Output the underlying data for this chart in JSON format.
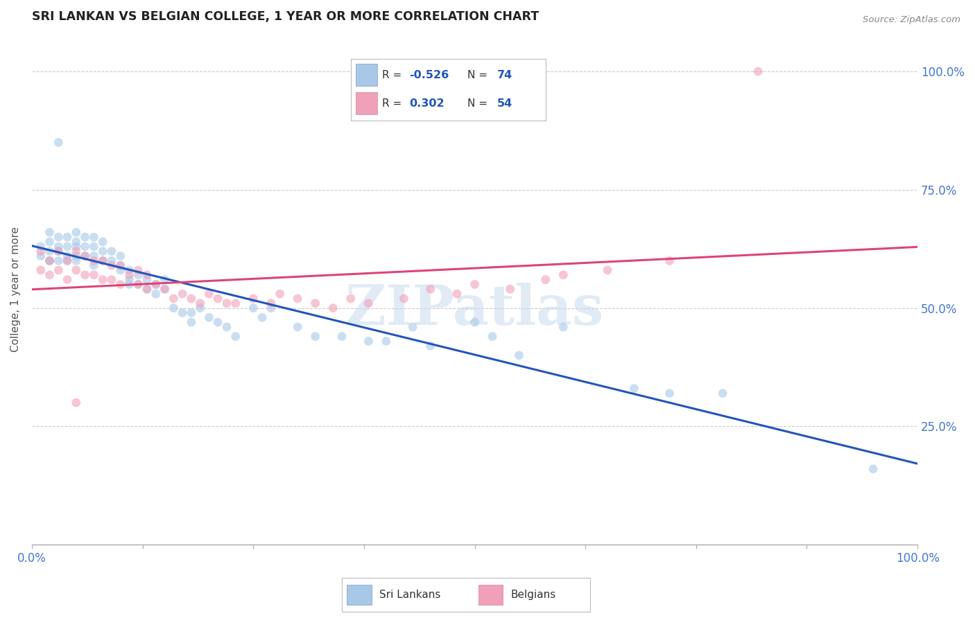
{
  "title": "SRI LANKAN VS BELGIAN COLLEGE, 1 YEAR OR MORE CORRELATION CHART",
  "source": "Source: ZipAtlas.com",
  "ylabel": "College, 1 year or more",
  "xlim": [
    0,
    1
  ],
  "ylim": [
    0,
    1.08
  ],
  "ytick_positions": [
    0.25,
    0.5,
    0.75,
    1.0
  ],
  "ytick_labels": [
    "25.0%",
    "50.0%",
    "75.0%",
    "100.0%"
  ],
  "xtick_positions": [
    0.0,
    0.125,
    0.25,
    0.375,
    0.5,
    0.625,
    0.75,
    0.875,
    1.0
  ],
  "xtick_label_positions": [
    0.0,
    1.0
  ],
  "xtick_label_texts": [
    "0.0%",
    "100.0%"
  ],
  "sri_lanka_color": "#a8c8e8",
  "belgian_color": "#f0a0b8",
  "sri_lanka_line_color": "#2255bb",
  "belgian_line_color": "#dd4477",
  "right_ytick_color": "#4477cc",
  "background_color": "#ffffff",
  "grid_color": "#cccccc",
  "marker_size": 85,
  "marker_alpha": 0.6,
  "watermark": "ZIPatlas",
  "sri_lanka_R": -0.526,
  "sri_lanka_N": 74,
  "belgian_R": 0.302,
  "belgian_N": 54,
  "sl_x": [
    0.01,
    0.01,
    0.02,
    0.02,
    0.02,
    0.02,
    0.02,
    0.03,
    0.03,
    0.03,
    0.03,
    0.03,
    0.04,
    0.04,
    0.04,
    0.04,
    0.05,
    0.05,
    0.05,
    0.05,
    0.05,
    0.06,
    0.06,
    0.06,
    0.07,
    0.07,
    0.07,
    0.07,
    0.08,
    0.08,
    0.08,
    0.09,
    0.09,
    0.1,
    0.1,
    0.1,
    0.11,
    0.11,
    0.11,
    0.12,
    0.12,
    0.13,
    0.13,
    0.14,
    0.14,
    0.15,
    0.15,
    0.16,
    0.17,
    0.18,
    0.18,
    0.19,
    0.2,
    0.21,
    0.22,
    0.23,
    0.25,
    0.26,
    0.27,
    0.3,
    0.32,
    0.35,
    0.38,
    0.4,
    0.43,
    0.45,
    0.5,
    0.52,
    0.55,
    0.6,
    0.68,
    0.72,
    0.78,
    0.95
  ],
  "sl_y": [
    0.63,
    0.61,
    0.66,
    0.64,
    0.62,
    0.6,
    0.6,
    0.65,
    0.63,
    0.62,
    0.6,
    0.85,
    0.65,
    0.63,
    0.61,
    0.6,
    0.66,
    0.64,
    0.63,
    0.61,
    0.6,
    0.65,
    0.63,
    0.61,
    0.65,
    0.63,
    0.61,
    0.59,
    0.64,
    0.62,
    0.6,
    0.62,
    0.6,
    0.61,
    0.59,
    0.58,
    0.58,
    0.56,
    0.55,
    0.57,
    0.55,
    0.56,
    0.54,
    0.55,
    0.53,
    0.56,
    0.54,
    0.5,
    0.49,
    0.49,
    0.47,
    0.5,
    0.48,
    0.47,
    0.46,
    0.44,
    0.5,
    0.48,
    0.5,
    0.46,
    0.44,
    0.44,
    0.43,
    0.43,
    0.46,
    0.42,
    0.47,
    0.44,
    0.4,
    0.46,
    0.33,
    0.32,
    0.32,
    0.16
  ],
  "be_x": [
    0.01,
    0.01,
    0.02,
    0.02,
    0.03,
    0.03,
    0.04,
    0.04,
    0.05,
    0.05,
    0.05,
    0.06,
    0.06,
    0.07,
    0.07,
    0.08,
    0.08,
    0.09,
    0.09,
    0.1,
    0.1,
    0.11,
    0.12,
    0.12,
    0.13,
    0.13,
    0.14,
    0.15,
    0.16,
    0.17,
    0.18,
    0.19,
    0.2,
    0.21,
    0.22,
    0.23,
    0.25,
    0.27,
    0.28,
    0.3,
    0.32,
    0.34,
    0.36,
    0.38,
    0.42,
    0.45,
    0.48,
    0.5,
    0.54,
    0.58,
    0.6,
    0.65,
    0.72,
    0.82
  ],
  "be_y": [
    0.62,
    0.58,
    0.6,
    0.57,
    0.62,
    0.58,
    0.6,
    0.56,
    0.62,
    0.58,
    0.3,
    0.61,
    0.57,
    0.6,
    0.57,
    0.6,
    0.56,
    0.59,
    0.56,
    0.59,
    0.55,
    0.57,
    0.58,
    0.55,
    0.57,
    0.54,
    0.55,
    0.54,
    0.52,
    0.53,
    0.52,
    0.51,
    0.53,
    0.52,
    0.51,
    0.51,
    0.52,
    0.51,
    0.53,
    0.52,
    0.51,
    0.5,
    0.52,
    0.51,
    0.52,
    0.54,
    0.53,
    0.55,
    0.54,
    0.56,
    0.57,
    0.58,
    0.6,
    1.0
  ]
}
